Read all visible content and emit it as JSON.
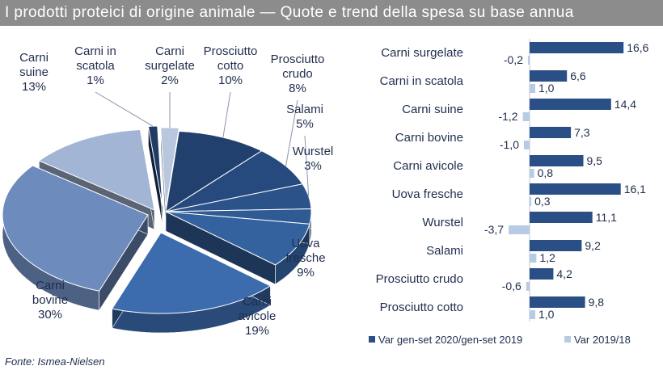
{
  "title": "I prodotti proteici di origine animale — Quote e trend della spesa su base annua",
  "source": "Fonte: Ismea-Nielsen",
  "chart_data": [
    {
      "type": "pie",
      "slices": [
        {
          "name": "Carni surgelate",
          "value": 2,
          "label": "Carni surgelate 2%",
          "color": "#b8c6de"
        },
        {
          "name": "Prosciutto cotto",
          "value": 10,
          "label": "Prosciutto cotto 10%",
          "color": "#22406e"
        },
        {
          "name": "Prosciutto crudo",
          "value": 8,
          "label": "Prosciutto crudo 8%",
          "color": "#264a7d"
        },
        {
          "name": "Salami",
          "value": 5,
          "label": "Salami 5%",
          "color": "#2b5289"
        },
        {
          "name": "Wurstel",
          "value": 3,
          "label": "Wurstel 3%",
          "color": "#305a94"
        },
        {
          "name": "Uova fresche",
          "value": 9,
          "label": "Uova fresche 9%",
          "color": "#34629f"
        },
        {
          "name": "Carni avicole",
          "value": 19,
          "label": "Carni avicole 19%",
          "color": "#3c6bae"
        },
        {
          "name": "Carni bovine",
          "value": 30,
          "label": "Carni bovine 30%",
          "color": "#6d8bbd"
        },
        {
          "name": "Carni suine",
          "value": 13,
          "label": "Carni suine 13%",
          "color": "#a3b5d4"
        },
        {
          "name": "Carni in scatola",
          "value": 1,
          "label": "Carni in scatola 1%",
          "color": "#1f3b66"
        }
      ]
    },
    {
      "type": "bar",
      "orientation": "horizontal",
      "categories": [
        "Carni surgelate",
        "Carni in scatola",
        "Carni suine",
        "Carni bovine",
        "Carni avicole",
        "Uova fresche",
        "Wurstel",
        "Salami",
        "Prosciutto crudo",
        "Prosciutto cotto"
      ],
      "series": [
        {
          "name": "Var gen-set 2020/gen-set 2019",
          "color": "#2a4f86",
          "values": [
            16.6,
            6.6,
            14.4,
            7.3,
            9.5,
            16.1,
            11.1,
            9.2,
            4.2,
            9.8
          ],
          "labels": [
            "16,6",
            "6,6",
            "14,4",
            "7,3",
            "9,5",
            "16,1",
            "11,1",
            "9,2",
            "4,2",
            "9,8"
          ]
        },
        {
          "name": "Var 2019/18",
          "color": "#b8cbe4",
          "values": [
            -0.2,
            1.0,
            -1.2,
            -1.0,
            0.8,
            0.3,
            -3.7,
            1.2,
            -0.6,
            1.0
          ],
          "labels": [
            "-0,2",
            "1,0",
            "-1,2",
            "-1,0",
            "0,8",
            "0,3",
            "-3,7",
            "1,2",
            "-0,6",
            "1,0"
          ]
        }
      ],
      "legend": "bottom"
    }
  ]
}
